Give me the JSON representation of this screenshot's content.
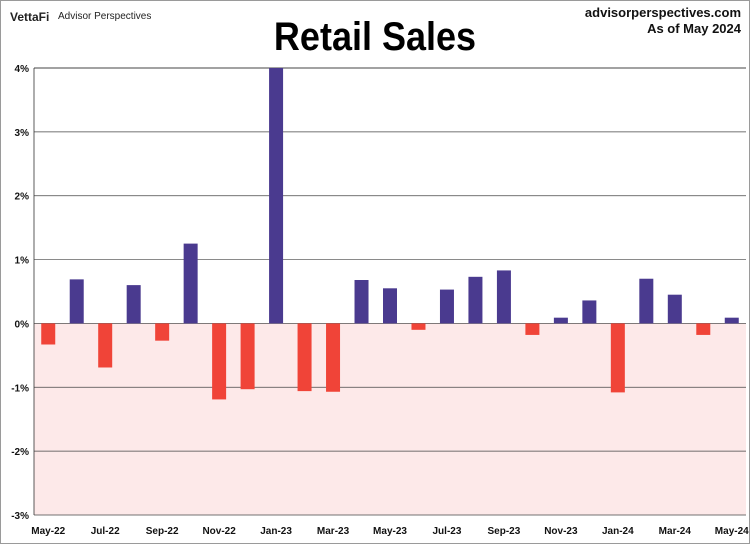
{
  "header": {
    "brand": "VettaFi",
    "brand_sub": "Advisor Perspectives",
    "site": "advisorperspectives.com",
    "as_of": "As of May 2024"
  },
  "colors": {
    "positive": "#4a3a8f",
    "negative": "#f04438",
    "negative_band": "#fde9e9"
  },
  "chart_data": {
    "type": "bar",
    "title": "Retail Sales",
    "xlabel": "",
    "ylabel": "",
    "ylim": [
      -3,
      4
    ],
    "y_ticks": [
      4,
      3,
      2,
      1,
      0,
      -1,
      -2,
      -3
    ],
    "y_tick_labels": [
      "4%",
      "3%",
      "2%",
      "1%",
      "0%",
      "-1%",
      "-2%",
      "-3%"
    ],
    "grid": true,
    "categories": [
      "May-22",
      "Jun-22",
      "Jul-22",
      "Aug-22",
      "Sep-22",
      "Oct-22",
      "Nov-22",
      "Dec-22",
      "Jan-23",
      "Feb-23",
      "Mar-23",
      "Apr-23",
      "May-23",
      "Jun-23",
      "Jul-23",
      "Aug-23",
      "Sep-23",
      "Oct-23",
      "Nov-23",
      "Dec-23",
      "Jan-24",
      "Feb-24",
      "Mar-24",
      "Apr-24",
      "May-24"
    ],
    "x_tick_labels": [
      "May-22",
      "Jul-22",
      "Sep-22",
      "Nov-22",
      "Jan-23",
      "Mar-23",
      "May-23",
      "Jul-23",
      "Sep-23",
      "Nov-23",
      "Jan-24",
      "Mar-24",
      "May-24"
    ],
    "values": [
      -0.33,
      0.69,
      -0.69,
      0.6,
      -0.27,
      1.25,
      -1.19,
      -1.03,
      4.0,
      -1.06,
      -1.07,
      0.68,
      0.55,
      -0.1,
      0.53,
      0.73,
      0.83,
      -0.18,
      0.09,
      0.36,
      -1.08,
      0.7,
      0.45,
      -0.18,
      0.09
    ]
  }
}
